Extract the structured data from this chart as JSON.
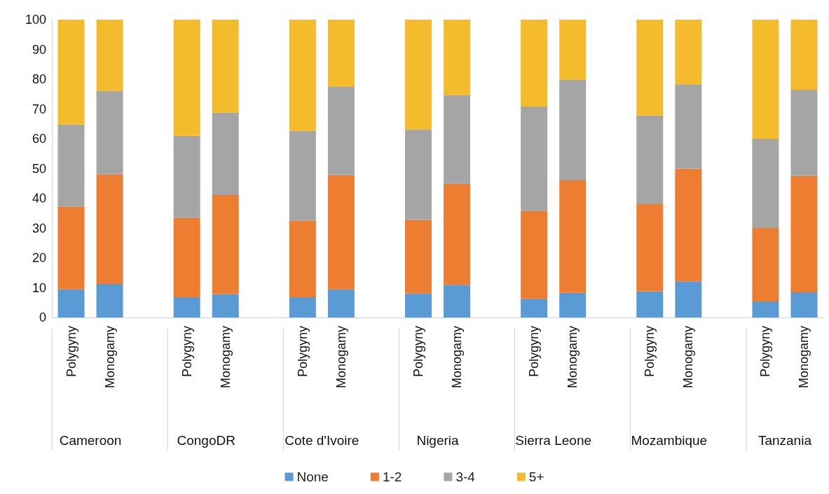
{
  "chart_data": {
    "type": "bar",
    "stacked": true,
    "categories": [
      "Polygyny",
      "Monogamy",
      "Polygyny",
      "Monogamy",
      "Polygyny",
      "Monogamy",
      "Polygyny",
      "Monogamy",
      "Polygyny",
      "Monogamy",
      "Polygyny",
      "Monogamy",
      "Polygyny",
      "Monogamy"
    ],
    "annotations": [
      "Cameroon",
      "CongoDR",
      "Cote d'Ivoire",
      "Nigeria",
      "Sierra Leone",
      "Mozambique",
      "Tanzania"
    ],
    "series": [
      {
        "name": "None",
        "color": "#5b9bd5",
        "values": [
          9.5,
          11.3,
          6.8,
          7.9,
          6.8,
          9.5,
          8.1,
          11,
          6.3,
          8.3,
          8.8,
          12.2,
          5.4,
          8.5
        ]
      },
      {
        "name": "1-2",
        "color": "#ed7d31",
        "values": [
          27.8,
          36.8,
          26.7,
          33.3,
          25.8,
          38.3,
          24.7,
          34,
          29.5,
          37.8,
          29.3,
          37.8,
          24.7,
          39.1
        ]
      },
      {
        "name": "3-4",
        "color": "#a5a5a5",
        "values": [
          27.5,
          28,
          27.5,
          27.6,
          30.1,
          29.8,
          30.4,
          29.7,
          35,
          33.8,
          29.8,
          28.3,
          29.9,
          28.9
        ]
      },
      {
        "name": "5+",
        "color": "#f4bc2c",
        "values": [
          35.2,
          23.9,
          39,
          31.2,
          37.3,
          22.4,
          36.8,
          25.3,
          29.2,
          20.1,
          32.1,
          21.7,
          40,
          23.5
        ]
      }
    ],
    "ylim": [
      0,
      100
    ],
    "yticks": [
      0,
      10,
      20,
      30,
      40,
      50,
      60,
      70,
      80,
      90,
      100
    ],
    "grid": false,
    "legend": "bottom"
  }
}
